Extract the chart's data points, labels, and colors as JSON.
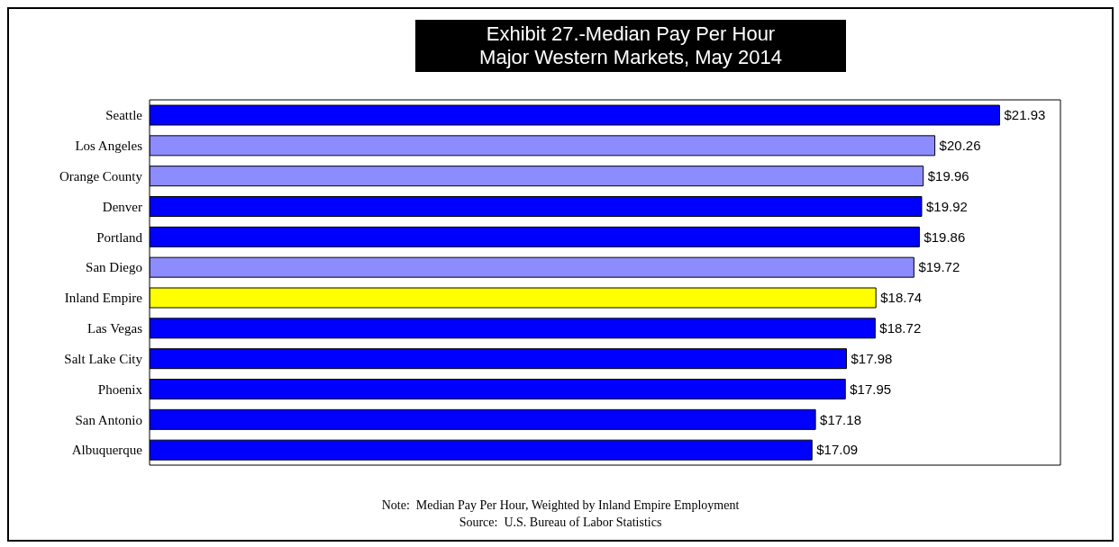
{
  "chart_data": {
    "type": "bar",
    "orientation": "horizontal",
    "title": "Exhibit 27.-Median Pay Per Hour",
    "subtitle": "Major Western Markets, May 2014",
    "categories": [
      "Seattle",
      "Los Angeles",
      "Orange County",
      "Denver",
      "Portland",
      "San Diego",
      "Inland Empire",
      "Las Vegas",
      "Salt Lake City",
      "Phoenix",
      "San Antonio",
      "Albuquerque"
    ],
    "values": [
      21.93,
      20.26,
      19.96,
      19.92,
      19.86,
      19.72,
      18.74,
      18.72,
      17.98,
      17.95,
      17.18,
      17.09
    ],
    "value_labels": [
      "$21.93",
      "$20.26",
      "$19.96",
      "$19.92",
      "$19.86",
      "$19.72",
      "$18.74",
      "$18.72",
      "$17.98",
      "$17.95",
      "$17.18",
      "$17.09"
    ],
    "colors": [
      "#0000ff",
      "#8c8cff",
      "#8c8cff",
      "#0000ff",
      "#0000ff",
      "#8c8cff",
      "#ffff00",
      "#0000ff",
      "#0000ff",
      "#0000ff",
      "#0000ff",
      "#0000ff"
    ],
    "xlim": [
      0,
      23.5
    ],
    "tick_labels": "y",
    "grid": false,
    "legend": false,
    "annotations": [
      "Note:  Median Pay Per Hour, Weighted by Inland Empire Employment",
      "Source:  U.S. Bureau of Labor Statistics"
    ]
  }
}
